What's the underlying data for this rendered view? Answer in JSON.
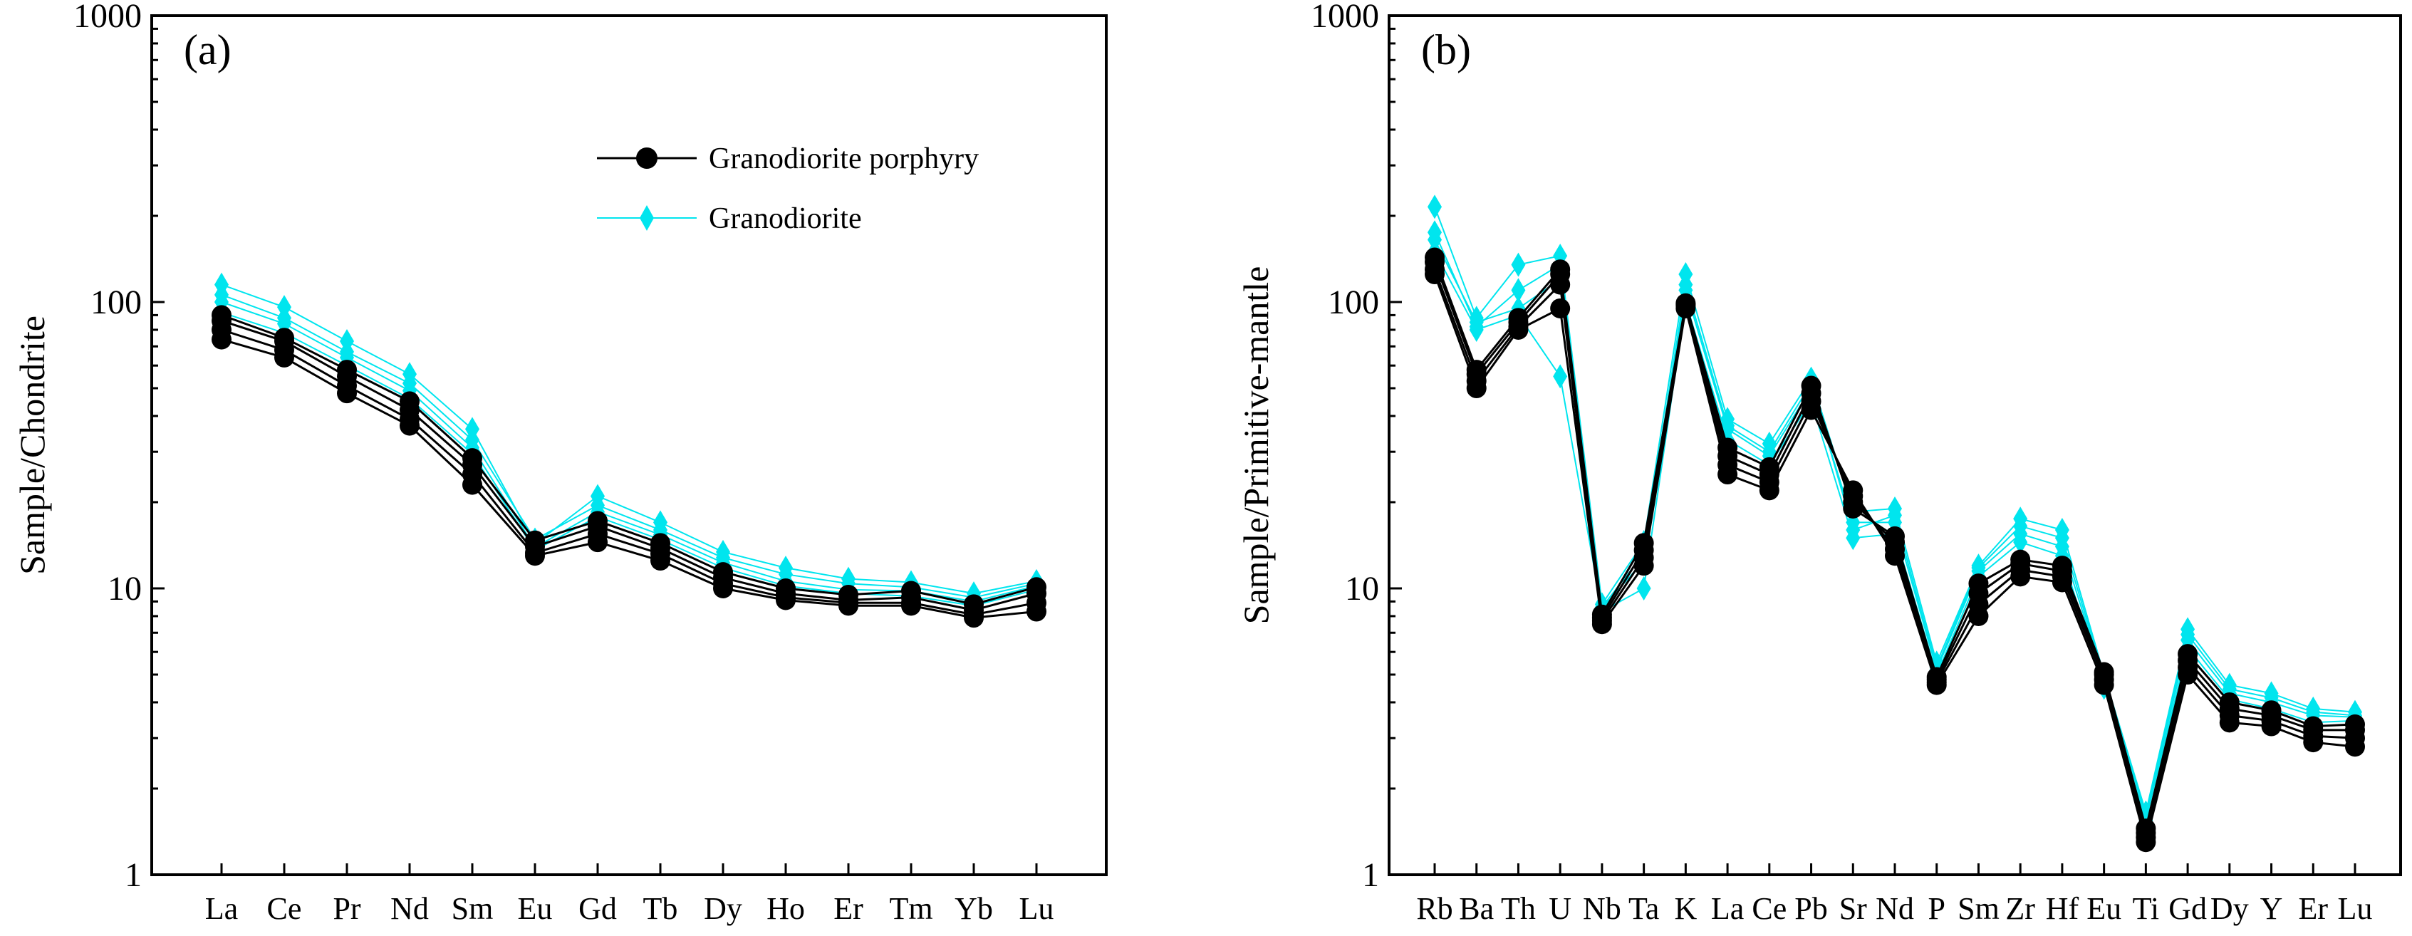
{
  "colors": {
    "porphyry": "#000000",
    "granodiorite": "#00e5ee"
  },
  "legend": {
    "items": [
      {
        "label": "Granodiorite porphyry",
        "marker": "circle",
        "color": "#000000"
      },
      {
        "label": "Granodiorite",
        "marker": "diamond",
        "color": "#00e5ee"
      }
    ]
  },
  "chart_data": [
    {
      "type": "line",
      "panel_label": "(a)",
      "ylabel": "Sample/Chondrite",
      "yscale": "log",
      "ylim": [
        1,
        1000
      ],
      "yticks": [
        1,
        10,
        100,
        1000
      ],
      "yticklabels": [
        "1",
        "10",
        "100",
        "1000"
      ],
      "categories": [
        "La",
        "Ce",
        "Pr",
        "Nd",
        "Sm",
        "Eu",
        "Gd",
        "Tb",
        "Dy",
        "Ho",
        "Er",
        "Tm",
        "Yb",
        "Lu"
      ],
      "legend_placement": "top-right",
      "series": [
        {
          "group": "porphyry",
          "values": [
            74,
            64,
            48,
            37,
            23,
            13,
            14.5,
            12.5,
            10,
            9.1,
            8.7,
            8.7,
            7.9,
            8.3
          ]
        },
        {
          "group": "porphyry",
          "values": [
            80,
            68,
            51,
            39,
            25,
            13.3,
            15.5,
            13.2,
            10.4,
            9.3,
            8.9,
            8.9,
            8.1,
            8.9
          ]
        },
        {
          "group": "porphyry",
          "values": [
            86,
            73,
            55,
            42,
            27,
            14,
            16.5,
            13.8,
            10.9,
            9.6,
            9.1,
            9.3,
            8.4,
            9.6
          ]
        },
        {
          "group": "porphyry",
          "values": [
            90,
            75,
            58,
            45,
            28.5,
            14.7,
            17.2,
            14.4,
            11.4,
            10,
            9.5,
            9.8,
            8.8,
            10.1
          ]
        },
        {
          "group": "granodiorite",
          "values": [
            92,
            78,
            60,
            46,
            29.5,
            13.6,
            17.8,
            14.8,
            11.8,
            10.2,
            9.6,
            9.4,
            8.7,
            9.9
          ]
        },
        {
          "group": "granodiorite",
          "values": [
            100,
            84,
            64,
            49,
            31,
            13.9,
            18.5,
            15.4,
            12.3,
            10.6,
            9.9,
            9.8,
            9,
            10.2
          ]
        },
        {
          "group": "granodiorite",
          "values": [
            115,
            96,
            73,
            56,
            36,
            14.3,
            21,
            17,
            13.4,
            11.8,
            10.8,
            10.5,
            9.6,
            10.6
          ]
        },
        {
          "group": "granodiorite",
          "values": [
            106,
            88,
            67,
            52,
            33,
            14.8,
            19.5,
            16,
            12.8,
            11.2,
            10.4,
            10.1,
            9.3,
            10.4
          ]
        }
      ]
    },
    {
      "type": "line",
      "panel_label": "(b)",
      "ylabel": "Sample/Primitive-mantle",
      "yscale": "log",
      "ylim": [
        1,
        1000
      ],
      "yticks": [
        1,
        10,
        100,
        1000
      ],
      "yticklabels": [
        "1",
        "10",
        "100",
        "1000"
      ],
      "categories": [
        "Rb",
        "Ba",
        "Th",
        "U",
        "Nb",
        "Ta",
        "K",
        "La",
        "Ce",
        "Pb",
        "Sr",
        "Nd",
        "P",
        "Sm",
        "Zr",
        "Hf",
        "Eu",
        "Ti",
        "Gd",
        "Dy",
        "Y",
        "Er",
        "Lu"
      ],
      "series": [
        {
          "group": "porphyry",
          "values": [
            125,
            50,
            80,
            95,
            7.5,
            12,
            95,
            25,
            22,
            42,
            22,
            13,
            4.6,
            8,
            11,
            10.5,
            4.6,
            1.3,
            5,
            3.4,
            3.3,
            2.9,
            2.8
          ]
        },
        {
          "group": "porphyry",
          "values": [
            130,
            53,
            82,
            115,
            7.7,
            12.8,
            97,
            27,
            23.5,
            45,
            21,
            13.7,
            4.7,
            8.8,
            11.6,
            11,
            4.8,
            1.35,
            5.3,
            3.6,
            3.45,
            3.05,
            3
          ]
        },
        {
          "group": "porphyry",
          "values": [
            138,
            56,
            85,
            125,
            7.9,
            13.6,
            98,
            29,
            25,
            48,
            20,
            14.5,
            4.8,
            9.6,
            12.2,
            11.5,
            5,
            1.4,
            5.6,
            3.8,
            3.6,
            3.2,
            3.2
          ]
        },
        {
          "group": "porphyry",
          "values": [
            143,
            58,
            88,
            130,
            8.1,
            14.4,
            99,
            31,
            26.5,
            51,
            19,
            15.2,
            4.9,
            10.4,
            12.6,
            12,
            5.1,
            1.45,
            5.9,
            4,
            3.75,
            3.3,
            3.35
          ]
        },
        {
          "group": "granodiorite",
          "values": [
            150,
            80,
            90,
            55,
            8.3,
            10,
            100,
            33,
            27,
            45,
            15,
            15.5,
            5,
            11,
            14.5,
            13,
            4.5,
            1.55,
            6.2,
            4.1,
            3.8,
            3.4,
            3.45
          ]
        },
        {
          "group": "granodiorite",
          "values": [
            165,
            85,
            95,
            120,
            8.5,
            12.5,
            110,
            36,
            29,
            50,
            17,
            17,
            5.2,
            11.5,
            15.5,
            14,
            4.8,
            1.6,
            6.6,
            4.3,
            4,
            3.6,
            3.55
          ]
        },
        {
          "group": "granodiorite",
          "values": [
            215,
            88,
            135,
            145,
            8.8,
            14.5,
            125,
            39,
            32,
            54,
            18.5,
            19,
            5.5,
            12,
            17.5,
            16,
            5,
            1.65,
            7.2,
            4.6,
            4.3,
            3.8,
            3.7
          ]
        },
        {
          "group": "granodiorite",
          "values": [
            175,
            82,
            110,
            135,
            8.6,
            13.2,
            115,
            37,
            30,
            52,
            16,
            18,
            5.3,
            11.8,
            16.5,
            15,
            4.9,
            1.6,
            6.9,
            4.45,
            4.15,
            3.7,
            3.6
          ]
        }
      ]
    }
  ]
}
